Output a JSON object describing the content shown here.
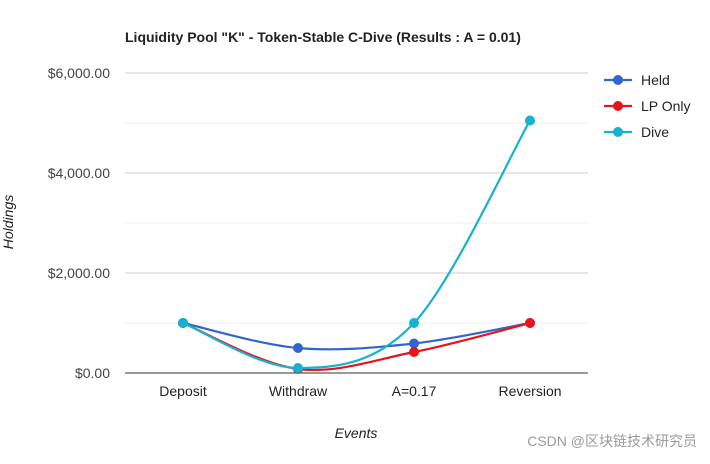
{
  "chart_data": {
    "type": "line",
    "title": "Liquidity Pool \"K\" - Token-Stable C-Dive (Results : A = 0.01)",
    "xlabel": "Events",
    "ylabel": "Holdings",
    "categories": [
      "Deposit",
      "Withdraw",
      "A=0.17",
      "Reversion"
    ],
    "ylim": [
      0,
      6000
    ],
    "yticks": [
      0,
      2000,
      4000,
      6000
    ],
    "ytick_labels": [
      "$0.00",
      "$2,000.00",
      "$4,000.00",
      "$6,000.00"
    ],
    "minor_gridlines": true,
    "smooth": true,
    "legend_position": "right",
    "series": [
      {
        "name": "Held",
        "color": "#3366cc",
        "values": [
          1000,
          500,
          590,
          1000
        ]
      },
      {
        "name": "LP Only",
        "color": "#e8141c",
        "values": [
          1000,
          80,
          420,
          1000
        ]
      },
      {
        "name": "Dive",
        "color": "#16b2cf",
        "values": [
          1000,
          100,
          1000,
          5050
        ]
      }
    ]
  },
  "watermark": "CSDN @区块链技术研究员"
}
